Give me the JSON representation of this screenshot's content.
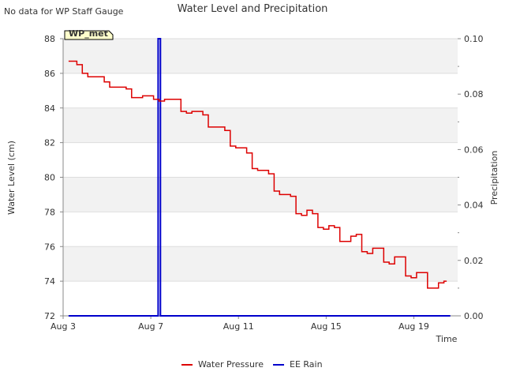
{
  "note": "No data for WP Staff Gauge",
  "station_badge": "WP_met",
  "colors": {
    "water_pressure": "#dd0000",
    "ee_rain": "#0000cc",
    "band": "#f2f2f2",
    "badge_fill": "#ffffcc",
    "badge_text": "#8b0000"
  },
  "chart_data": {
    "type": "line",
    "title": "Water Level and Precipitation",
    "xlabel": "Time",
    "ylabel": "Water Level (cm)",
    "y2label": "Precipitation",
    "xlim": [
      "2023-08-03",
      "2023-08-21"
    ],
    "xticks": [
      {
        "date": "2023-08-03",
        "label": "Aug 3"
      },
      {
        "date": "2023-08-07",
        "label": "Aug 7"
      },
      {
        "date": "2023-08-11",
        "label": "Aug 11"
      },
      {
        "date": "2023-08-15",
        "label": "Aug 15"
      },
      {
        "date": "2023-08-19",
        "label": "Aug 19"
      }
    ],
    "ylim": [
      72,
      88
    ],
    "yticks": [
      "72",
      "74",
      "76",
      "78",
      "80",
      "82",
      "84",
      "86",
      "88"
    ],
    "y2lim": [
      0,
      0.1
    ],
    "y2ticks": [
      "0.00",
      "0.02",
      "0.04",
      "0.06",
      "0.08",
      "0.10"
    ],
    "grid": true,
    "legend": "bottom-center",
    "series": [
      {
        "name": "Water Pressure",
        "axis": "left",
        "x": [
          "2023-08-03 06:00",
          "2023-08-03 12:00",
          "2023-08-03 18:00",
          "2023-08-04 00:00",
          "2023-08-04 06:00",
          "2023-08-04 12:00",
          "2023-08-04 18:00",
          "2023-08-05 00:00",
          "2023-08-05 06:00",
          "2023-08-05 12:00",
          "2023-08-05 18:00",
          "2023-08-06 00:00",
          "2023-08-06 06:00",
          "2023-08-06 12:00",
          "2023-08-06 18:00",
          "2023-08-07 00:00",
          "2023-08-07 06:00",
          "2023-08-07 12:00",
          "2023-08-07 18:00",
          "2023-08-08 00:00",
          "2023-08-08 06:00",
          "2023-08-08 12:00",
          "2023-08-08 18:00",
          "2023-08-09 00:00",
          "2023-08-09 06:00",
          "2023-08-09 12:00",
          "2023-08-09 18:00",
          "2023-08-10 00:00",
          "2023-08-10 06:00",
          "2023-08-10 12:00",
          "2023-08-10 18:00",
          "2023-08-11 00:00",
          "2023-08-11 06:00",
          "2023-08-11 12:00",
          "2023-08-11 18:00",
          "2023-08-12 00:00",
          "2023-08-12 06:00",
          "2023-08-12 12:00",
          "2023-08-12 18:00",
          "2023-08-13 00:00",
          "2023-08-13 06:00",
          "2023-08-13 12:00",
          "2023-08-13 18:00",
          "2023-08-14 00:00",
          "2023-08-14 06:00",
          "2023-08-14 12:00",
          "2023-08-14 18:00",
          "2023-08-15 00:00",
          "2023-08-15 06:00",
          "2023-08-15 12:00",
          "2023-08-15 18:00",
          "2023-08-16 00:00",
          "2023-08-16 06:00",
          "2023-08-16 12:00",
          "2023-08-16 18:00",
          "2023-08-17 00:00",
          "2023-08-17 06:00",
          "2023-08-17 12:00",
          "2023-08-17 18:00",
          "2023-08-18 00:00",
          "2023-08-18 06:00",
          "2023-08-18 12:00",
          "2023-08-18 18:00",
          "2023-08-19 00:00",
          "2023-08-19 06:00",
          "2023-08-19 12:00",
          "2023-08-19 18:00",
          "2023-08-20 00:00",
          "2023-08-20 06:00",
          "2023-08-20 12:00"
        ],
        "values": [
          86.7,
          86.7,
          86.5,
          86.0,
          85.8,
          85.8,
          85.8,
          85.5,
          85.2,
          85.2,
          85.2,
          85.1,
          84.6,
          84.6,
          84.7,
          84.7,
          84.5,
          84.4,
          84.5,
          84.5,
          84.5,
          83.8,
          83.7,
          83.8,
          83.8,
          83.6,
          82.9,
          82.9,
          82.9,
          82.7,
          81.8,
          81.7,
          81.7,
          81.4,
          80.5,
          80.4,
          80.4,
          80.2,
          79.2,
          79.0,
          79.0,
          78.9,
          77.9,
          77.8,
          78.1,
          77.9,
          77.1,
          77.0,
          77.2,
          77.1,
          76.3,
          76.3,
          76.6,
          76.7,
          75.7,
          75.6,
          75.9,
          75.9,
          75.1,
          75.0,
          75.4,
          75.4,
          74.3,
          74.2,
          74.5,
          74.5,
          73.6,
          73.6,
          73.9,
          74.0
        ]
      },
      {
        "name": "EE Rain",
        "axis": "right",
        "x": [
          "2023-08-03 06:00",
          "2023-08-07 08:00",
          "2023-08-07 08:00",
          "2023-08-07 10:30",
          "2023-08-07 10:30",
          "2023-08-20 16:00"
        ],
        "values": [
          0,
          0,
          0.1,
          0.1,
          0,
          0
        ],
        "spikes": [
          {
            "x": "2023-08-07 08:00",
            "value": 0.1
          },
          {
            "x": "2023-08-07 10:30",
            "value": 0.1
          }
        ]
      }
    ]
  }
}
